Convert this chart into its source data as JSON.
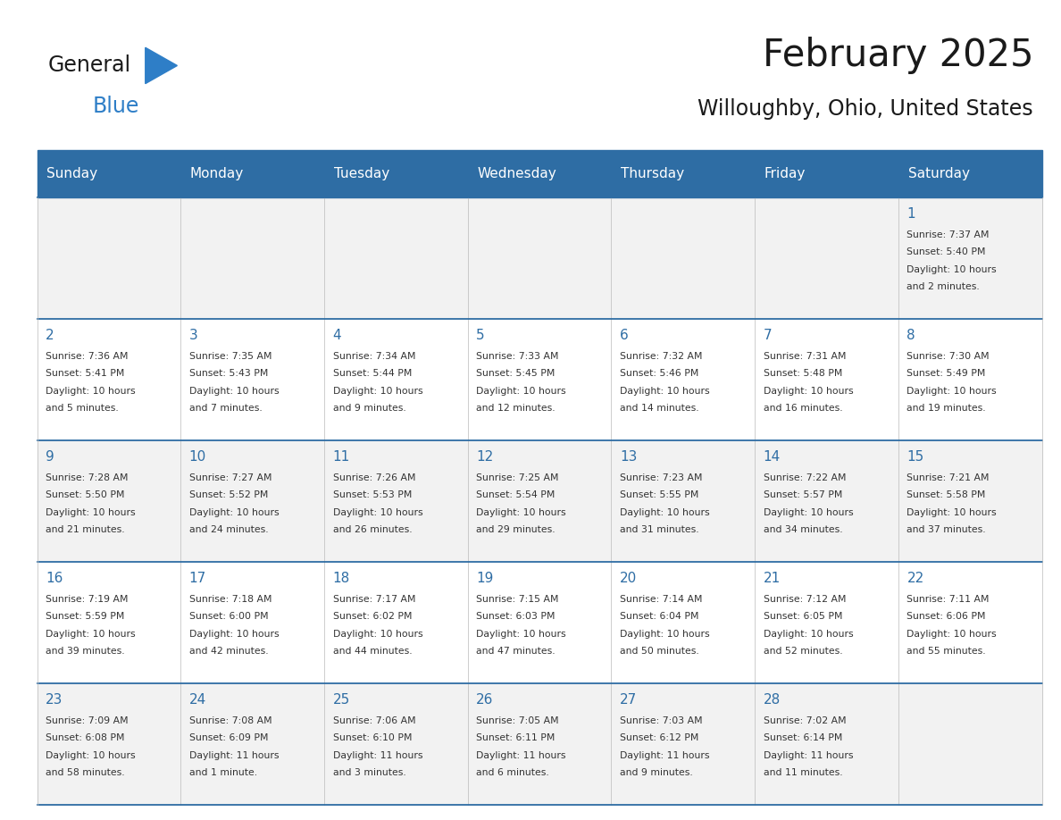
{
  "title": "February 2025",
  "subtitle": "Willoughby, Ohio, United States",
  "header_bg": "#2E6DA4",
  "header_text_color": "#FFFFFF",
  "cell_bg_light": "#F2F2F2",
  "cell_bg_white": "#FFFFFF",
  "day_number_color": "#2E6DA4",
  "text_color": "#333333",
  "days_of_week": [
    "Sunday",
    "Monday",
    "Tuesday",
    "Wednesday",
    "Thursday",
    "Friday",
    "Saturday"
  ],
  "logo_color1": "#1A1A1A",
  "logo_color2": "#2E7EC7",
  "calendar_data": [
    [
      null,
      null,
      null,
      null,
      null,
      null,
      {
        "day": 1,
        "sunrise": "7:37 AM",
        "sunset": "5:40 PM",
        "daylight": "10 hours and 2 minutes."
      }
    ],
    [
      {
        "day": 2,
        "sunrise": "7:36 AM",
        "sunset": "5:41 PM",
        "daylight": "10 hours and 5 minutes."
      },
      {
        "day": 3,
        "sunrise": "7:35 AM",
        "sunset": "5:43 PM",
        "daylight": "10 hours and 7 minutes."
      },
      {
        "day": 4,
        "sunrise": "7:34 AM",
        "sunset": "5:44 PM",
        "daylight": "10 hours and 9 minutes."
      },
      {
        "day": 5,
        "sunrise": "7:33 AM",
        "sunset": "5:45 PM",
        "daylight": "10 hours and 12 minutes."
      },
      {
        "day": 6,
        "sunrise": "7:32 AM",
        "sunset": "5:46 PM",
        "daylight": "10 hours and 14 minutes."
      },
      {
        "day": 7,
        "sunrise": "7:31 AM",
        "sunset": "5:48 PM",
        "daylight": "10 hours and 16 minutes."
      },
      {
        "day": 8,
        "sunrise": "7:30 AM",
        "sunset": "5:49 PM",
        "daylight": "10 hours and 19 minutes."
      }
    ],
    [
      {
        "day": 9,
        "sunrise": "7:28 AM",
        "sunset": "5:50 PM",
        "daylight": "10 hours and 21 minutes."
      },
      {
        "day": 10,
        "sunrise": "7:27 AM",
        "sunset": "5:52 PM",
        "daylight": "10 hours and 24 minutes."
      },
      {
        "day": 11,
        "sunrise": "7:26 AM",
        "sunset": "5:53 PM",
        "daylight": "10 hours and 26 minutes."
      },
      {
        "day": 12,
        "sunrise": "7:25 AM",
        "sunset": "5:54 PM",
        "daylight": "10 hours and 29 minutes."
      },
      {
        "day": 13,
        "sunrise": "7:23 AM",
        "sunset": "5:55 PM",
        "daylight": "10 hours and 31 minutes."
      },
      {
        "day": 14,
        "sunrise": "7:22 AM",
        "sunset": "5:57 PM",
        "daylight": "10 hours and 34 minutes."
      },
      {
        "day": 15,
        "sunrise": "7:21 AM",
        "sunset": "5:58 PM",
        "daylight": "10 hours and 37 minutes."
      }
    ],
    [
      {
        "day": 16,
        "sunrise": "7:19 AM",
        "sunset": "5:59 PM",
        "daylight": "10 hours and 39 minutes."
      },
      {
        "day": 17,
        "sunrise": "7:18 AM",
        "sunset": "6:00 PM",
        "daylight": "10 hours and 42 minutes."
      },
      {
        "day": 18,
        "sunrise": "7:17 AM",
        "sunset": "6:02 PM",
        "daylight": "10 hours and 44 minutes."
      },
      {
        "day": 19,
        "sunrise": "7:15 AM",
        "sunset": "6:03 PM",
        "daylight": "10 hours and 47 minutes."
      },
      {
        "day": 20,
        "sunrise": "7:14 AM",
        "sunset": "6:04 PM",
        "daylight": "10 hours and 50 minutes."
      },
      {
        "day": 21,
        "sunrise": "7:12 AM",
        "sunset": "6:05 PM",
        "daylight": "10 hours and 52 minutes."
      },
      {
        "day": 22,
        "sunrise": "7:11 AM",
        "sunset": "6:06 PM",
        "daylight": "10 hours and 55 minutes."
      }
    ],
    [
      {
        "day": 23,
        "sunrise": "7:09 AM",
        "sunset": "6:08 PM",
        "daylight": "10 hours and 58 minutes."
      },
      {
        "day": 24,
        "sunrise": "7:08 AM",
        "sunset": "6:09 PM",
        "daylight": "11 hours and 1 minute."
      },
      {
        "day": 25,
        "sunrise": "7:06 AM",
        "sunset": "6:10 PM",
        "daylight": "11 hours and 3 minutes."
      },
      {
        "day": 26,
        "sunrise": "7:05 AM",
        "sunset": "6:11 PM",
        "daylight": "11 hours and 6 minutes."
      },
      {
        "day": 27,
        "sunrise": "7:03 AM",
        "sunset": "6:12 PM",
        "daylight": "11 hours and 9 minutes."
      },
      {
        "day": 28,
        "sunrise": "7:02 AM",
        "sunset": "6:14 PM",
        "daylight": "11 hours and 11 minutes."
      },
      null
    ]
  ]
}
